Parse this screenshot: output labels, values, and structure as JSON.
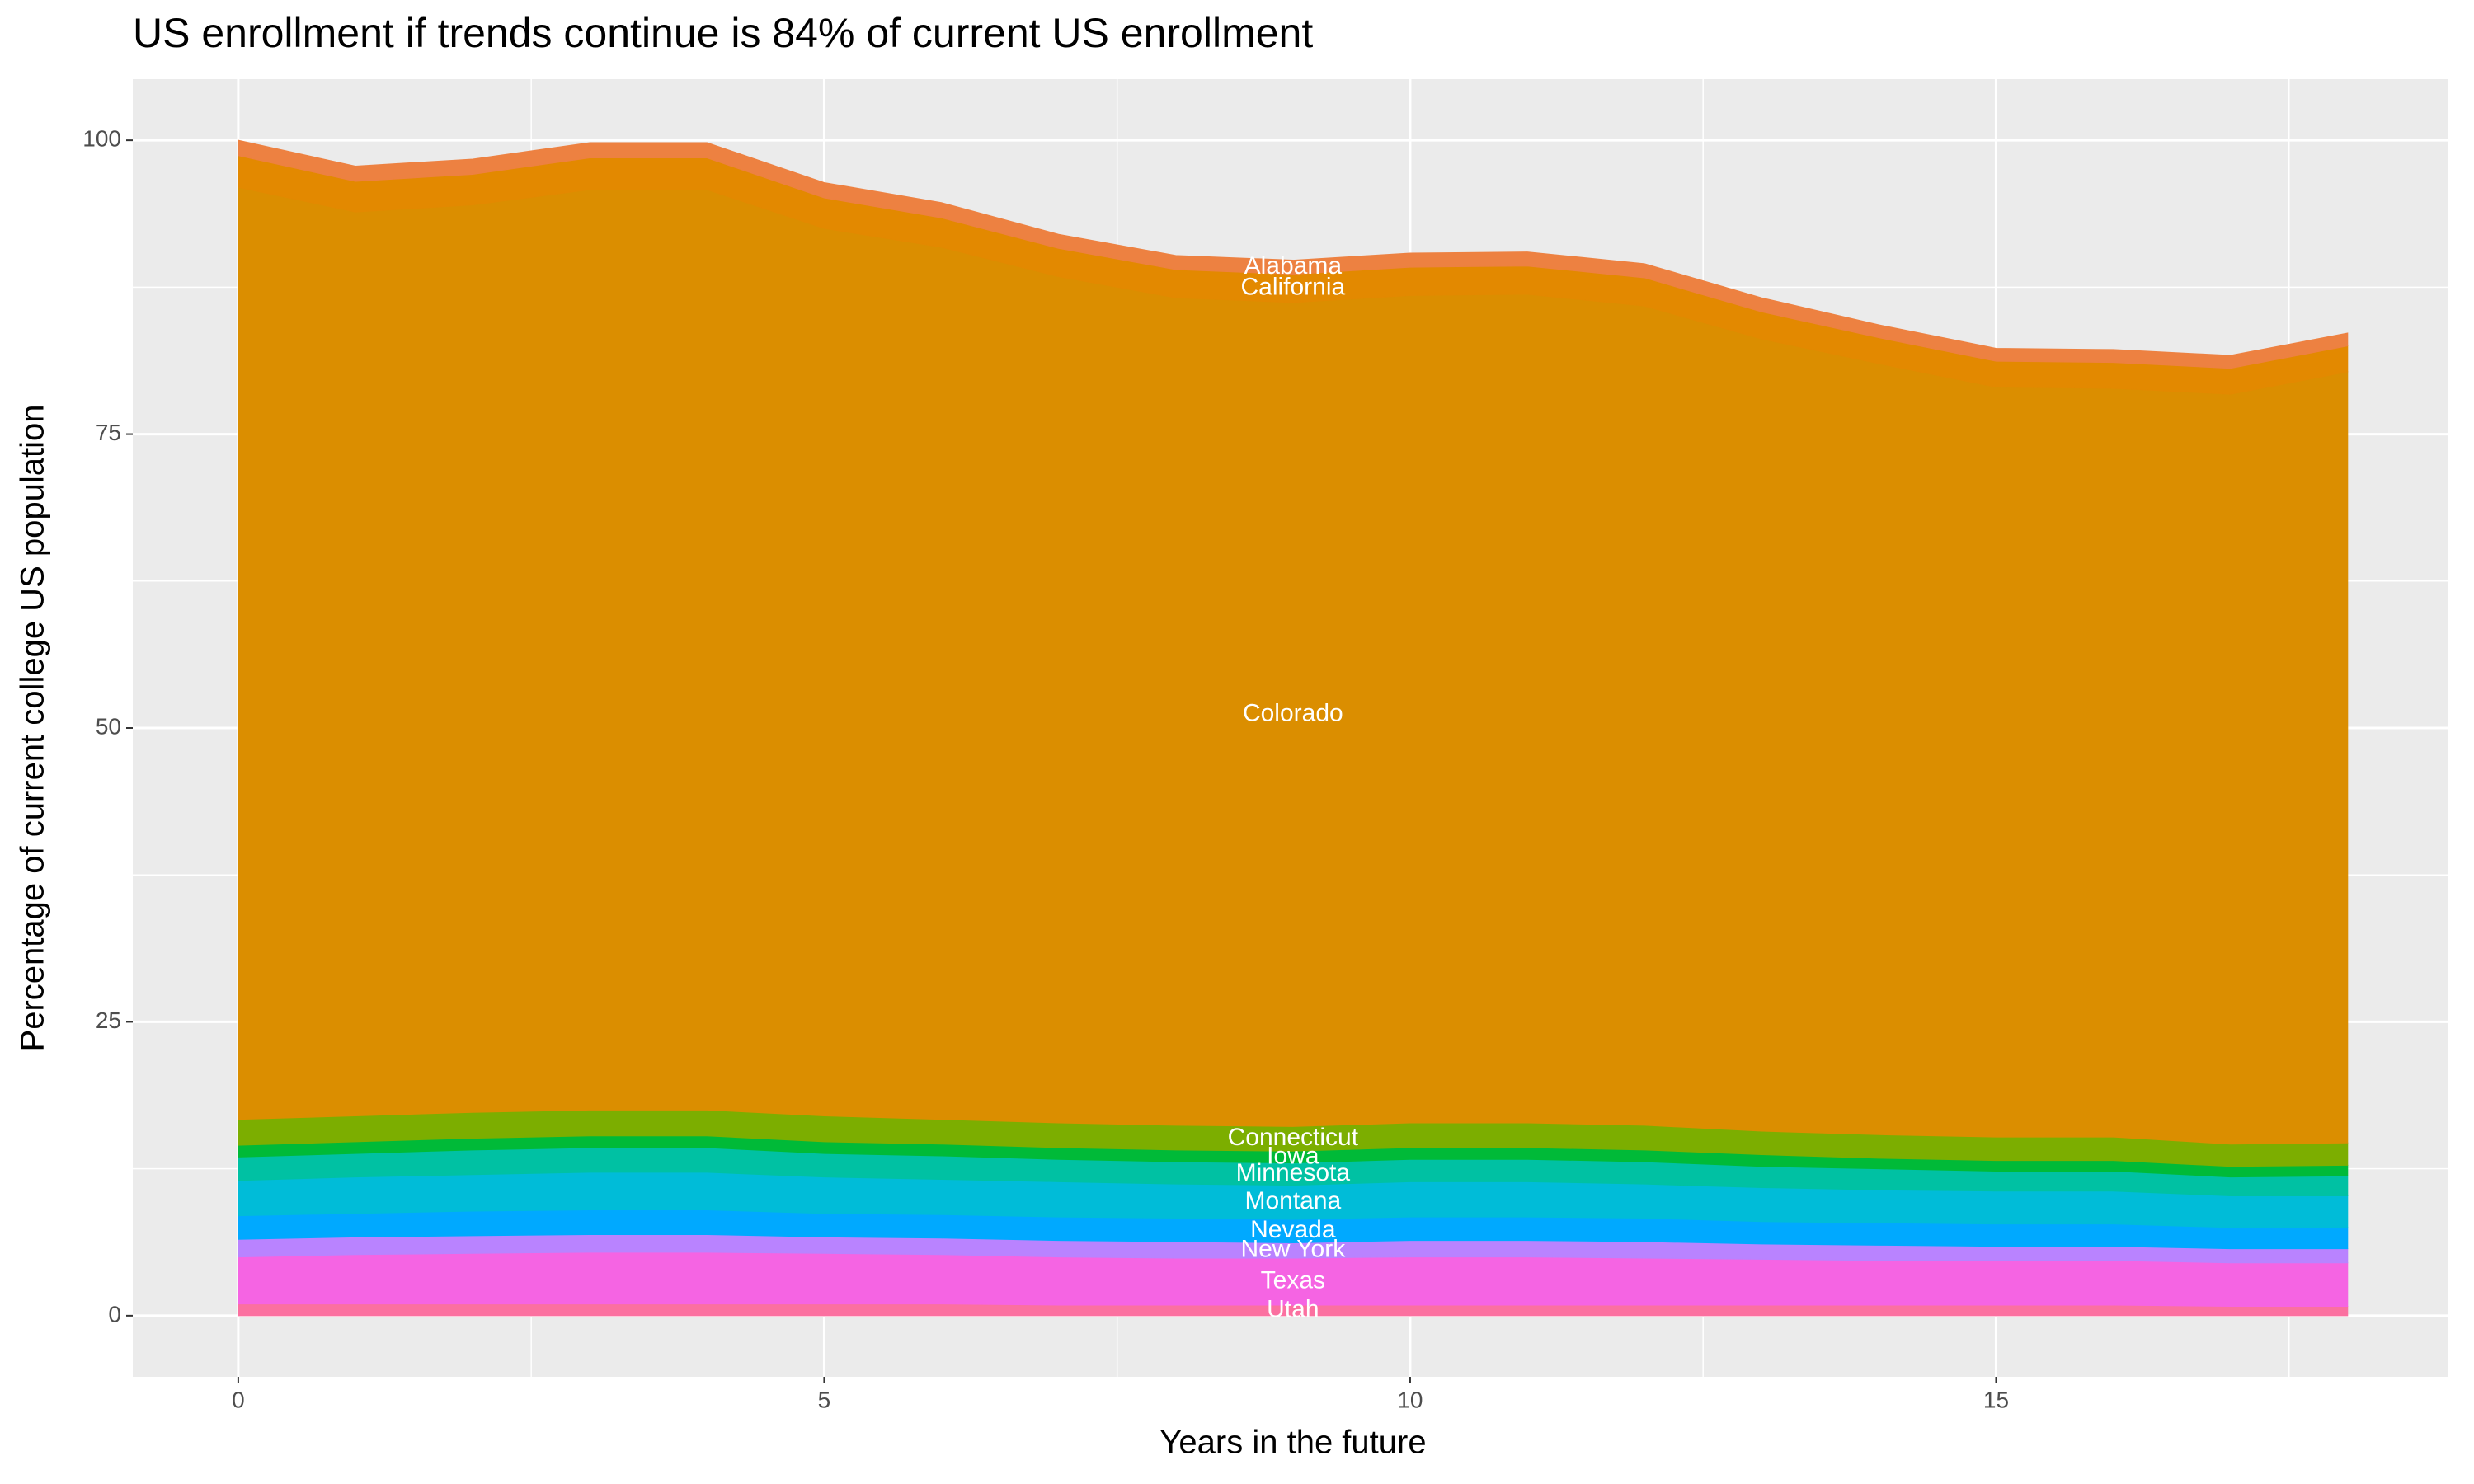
{
  "chart_data": {
    "type": "stacked_area",
    "title": "US enrollment if trends continue is 84% of current US enrollment",
    "x_label": "Years in the future",
    "y_label": "Percentage of current college US population",
    "x": [
      0,
      1,
      2,
      3,
      4,
      5,
      6,
      7,
      8,
      9,
      10,
      11,
      12,
      13,
      14,
      15,
      16,
      17,
      18
    ],
    "xlim": [
      -0.9,
      18.86
    ],
    "xticks": [
      0,
      5,
      10,
      15
    ],
    "ylim": [
      -5.2,
      105.2
    ],
    "yticks": [
      0,
      25,
      50,
      75,
      100
    ],
    "grid": true,
    "label_x": 9,
    "series": [
      {
        "name": "Utah",
        "color": "#fb70a0",
        "values": [
          1.0,
          1.0,
          1.0,
          1.0,
          1.0,
          1.0,
          1.0,
          0.9,
          0.9,
          0.9,
          0.9,
          0.9,
          0.9,
          0.9,
          0.9,
          0.9,
          0.9,
          0.8,
          0.8
        ]
      },
      {
        "name": "Texas",
        "color": "#f564e3",
        "values": [
          4.0,
          4.2,
          4.3,
          4.4,
          4.4,
          4.3,
          4.2,
          4.1,
          4.0,
          4.0,
          4.1,
          4.1,
          4.0,
          3.9,
          3.8,
          3.8,
          3.8,
          3.7,
          3.7
        ]
      },
      {
        "name": "New York",
        "color": "#b983ff",
        "values": [
          1.5,
          1.5,
          1.5,
          1.5,
          1.5,
          1.4,
          1.4,
          1.4,
          1.4,
          1.3,
          1.4,
          1.4,
          1.4,
          1.3,
          1.3,
          1.2,
          1.2,
          1.2,
          1.2
        ]
      },
      {
        "name": "Nevada",
        "color": "#00a9ff",
        "values": [
          2.0,
          2.0,
          2.1,
          2.1,
          2.1,
          2.0,
          2.0,
          2.0,
          2.0,
          2.0,
          2.0,
          2.0,
          2.0,
          1.9,
          1.9,
          1.9,
          1.9,
          1.8,
          1.8
        ]
      },
      {
        "name": "Montana",
        "color": "#00bcd8",
        "values": [
          3.0,
          3.1,
          3.1,
          3.2,
          3.2,
          3.1,
          3.0,
          3.0,
          2.9,
          2.9,
          3.0,
          3.0,
          2.9,
          2.9,
          2.8,
          2.8,
          2.8,
          2.7,
          2.7
        ]
      },
      {
        "name": "Minnesota",
        "color": "#00c1a3",
        "values": [
          2.0,
          2.0,
          2.1,
          2.1,
          2.1,
          2.0,
          2.0,
          1.9,
          1.9,
          1.9,
          1.9,
          1.9,
          1.9,
          1.8,
          1.8,
          1.7,
          1.7,
          1.6,
          1.7
        ]
      },
      {
        "name": "Iowa",
        "color": "#00ba38",
        "values": [
          1.0,
          1.0,
          1.0,
          1.0,
          1.0,
          1.0,
          1.0,
          1.0,
          1.0,
          1.0,
          1.0,
          1.0,
          1.0,
          1.0,
          0.9,
          0.9,
          0.9,
          0.9,
          0.9
        ]
      },
      {
        "name": "Connecticut",
        "color": "#7cae00",
        "values": [
          2.2,
          2.2,
          2.2,
          2.2,
          2.2,
          2.2,
          2.1,
          2.1,
          2.1,
          2.1,
          2.1,
          2.1,
          2.1,
          2.0,
          2.0,
          2.0,
          2.0,
          1.9,
          1.9
        ]
      },
      {
        "name": "Colorado",
        "color": "#db8e00",
        "values": [
          79.3,
          76.9,
          77.2,
          78.3,
          78.3,
          75.5,
          74.2,
          72.0,
          70.4,
          70.1,
          70.4,
          70.5,
          69.7,
          67.4,
          65.6,
          63.8,
          63.7,
          63.8,
          65.6
        ]
      },
      {
        "name": "California",
        "color": "#e38900",
        "values": [
          2.7,
          2.6,
          2.6,
          2.7,
          2.7,
          2.6,
          2.5,
          2.4,
          2.4,
          2.4,
          2.4,
          2.4,
          2.4,
          2.3,
          2.2,
          2.2,
          2.2,
          2.2,
          2.2
        ]
      },
      {
        "name": "Alabama",
        "color": "#ed8141",
        "values": [
          1.3,
          1.3,
          1.3,
          1.3,
          1.3,
          1.3,
          1.3,
          1.2,
          1.2,
          1.2,
          1.2,
          1.2,
          1.2,
          1.2,
          1.1,
          1.1,
          1.1,
          1.1,
          1.1
        ]
      }
    ]
  }
}
